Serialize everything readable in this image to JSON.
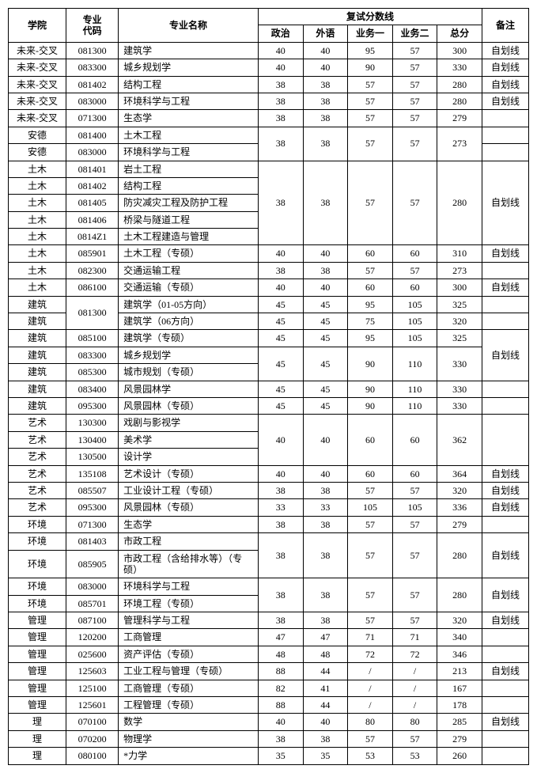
{
  "headers": {
    "college": "学院",
    "code": "专业\n代码",
    "name": "专业名称",
    "scoreGroup": "复试分数线",
    "politics": "政治",
    "foreign": "外语",
    "sub1": "业务一",
    "sub2": "业务二",
    "total": "总分",
    "note": "备注"
  },
  "colors": {
    "border": "#000000",
    "background": "#ffffff",
    "text": "#000000"
  },
  "fontSize": 12,
  "rows": [
    {
      "college": "未来-交叉",
      "code": "081300",
      "name": "建筑学",
      "p": "40",
      "f": "40",
      "s1": "95",
      "s2": "57",
      "t": "300",
      "note": "自划线"
    },
    {
      "college": "未来-交叉",
      "code": "083300",
      "name": "城乡规划学",
      "p": "40",
      "f": "40",
      "s1": "90",
      "s2": "57",
      "t": "330",
      "note": "自划线"
    },
    {
      "college": "未来-交叉",
      "code": "081402",
      "name": "结构工程",
      "p": "38",
      "f": "38",
      "s1": "57",
      "s2": "57",
      "t": "280",
      "note": "自划线"
    },
    {
      "college": "未来-交叉",
      "code": "083000",
      "name": "环境科学与工程",
      "p": "38",
      "f": "38",
      "s1": "57",
      "s2": "57",
      "t": "280",
      "note": "自划线"
    },
    {
      "college": "未来-交叉",
      "code": "071300",
      "name": "生态学",
      "p": "38",
      "f": "38",
      "s1": "57",
      "s2": "57",
      "t": "279",
      "note": ""
    },
    {
      "college": "安德",
      "code": "081400",
      "name": "土木工程",
      "pSpan": 2,
      "p": "38",
      "f": "38",
      "s1": "57",
      "s2": "57",
      "t": "273",
      "note": ""
    },
    {
      "college": "安德",
      "code": "083000",
      "name": "环境科学与工程",
      "skipScores": true,
      "note": ""
    },
    {
      "college": "土木",
      "code": "081401",
      "name": "岩土工程",
      "pSpan": 5,
      "p": "38",
      "f": "38",
      "s1": "57",
      "s2": "57",
      "t": "280",
      "noteSpan": 5,
      "note": "自划线"
    },
    {
      "college": "土木",
      "code": "081402",
      "name": "结构工程",
      "skipScores": true,
      "skipNote": true
    },
    {
      "college": "土木",
      "code": "081405",
      "name": "防灾减灾工程及防护工程",
      "skipScores": true,
      "skipNote": true
    },
    {
      "college": "土木",
      "code": "081406",
      "name": "桥梁与隧道工程",
      "skipScores": true,
      "skipNote": true
    },
    {
      "college": "土木",
      "code": "0814Z1",
      "name": "土木工程建造与管理",
      "skipScores": true,
      "skipNote": true
    },
    {
      "college": "土木",
      "code": "085901",
      "name": "土木工程（专硕）",
      "p": "40",
      "f": "40",
      "s1": "60",
      "s2": "60",
      "t": "310",
      "note": "自划线"
    },
    {
      "college": "土木",
      "code": "082300",
      "name": "交通运输工程",
      "p": "38",
      "f": "38",
      "s1": "57",
      "s2": "57",
      "t": "273",
      "note": ""
    },
    {
      "college": "土木",
      "code": "086100",
      "name": "交通运输（专硕）",
      "p": "40",
      "f": "40",
      "s1": "60",
      "s2": "60",
      "t": "300",
      "note": "自划线"
    },
    {
      "college": "建筑",
      "codeSpan": 2,
      "code": "081300",
      "name": "建筑学（01-05方向）",
      "p": "45",
      "f": "45",
      "s1": "95",
      "s2": "105",
      "t": "325",
      "note": ""
    },
    {
      "college": "建筑",
      "skipCode": true,
      "name": "建筑学（06方向）",
      "p": "45",
      "f": "45",
      "s1": "75",
      "s2": "105",
      "t": "320",
      "note": ""
    },
    {
      "college": "建筑",
      "code": "085100",
      "name": "建筑学（专硕）",
      "p": "45",
      "f": "45",
      "s1": "95",
      "s2": "105",
      "t": "325",
      "noteSpan": 3,
      "note": "自划线"
    },
    {
      "college": "建筑",
      "code": "083300",
      "name": "城乡规划学",
      "pSpan": 2,
      "p": "45",
      "f": "45",
      "s1": "90",
      "s2": "110",
      "t": "330",
      "skipNote": true
    },
    {
      "college": "建筑",
      "code": "085300",
      "name": "城市规划（专硕）",
      "skipScores": true,
      "skipNote": true
    },
    {
      "college": "建筑",
      "code": "083400",
      "name": "风景园林学",
      "p": "45",
      "f": "45",
      "s1": "90",
      "s2": "110",
      "t": "330",
      "note": ""
    },
    {
      "college": "建筑",
      "code": "095300",
      "name": "风景园林（专硕）",
      "p": "45",
      "f": "45",
      "s1": "90",
      "s2": "110",
      "t": "330",
      "note": ""
    },
    {
      "college": "艺术",
      "code": "130300",
      "name": "戏剧与影视学",
      "pSpan": 3,
      "p": "40",
      "f": "40",
      "s1": "60",
      "s2": "60",
      "t": "362",
      "noteSpan": 3,
      "note": ""
    },
    {
      "college": "艺术",
      "code": "130400",
      "name": "美术学",
      "skipScores": true,
      "skipNote": true
    },
    {
      "college": "艺术",
      "code": "130500",
      "name": "设计学",
      "skipScores": true,
      "skipNote": true
    },
    {
      "college": "艺术",
      "code": "135108",
      "name": "艺术设计（专硕）",
      "p": "40",
      "f": "40",
      "s1": "60",
      "s2": "60",
      "t": "364",
      "note": "自划线"
    },
    {
      "college": "艺术",
      "code": "085507",
      "name": "工业设计工程（专硕）",
      "p": "38",
      "f": "38",
      "s1": "57",
      "s2": "57",
      "t": "320",
      "note": "自划线"
    },
    {
      "college": "艺术",
      "code": "095300",
      "name": "风景园林（专硕）",
      "p": "33",
      "f": "33",
      "s1": "105",
      "s2": "105",
      "t": "336",
      "note": "自划线"
    },
    {
      "college": "环境",
      "code": "071300",
      "name": "生态学",
      "p": "38",
      "f": "38",
      "s1": "57",
      "s2": "57",
      "t": "279",
      "note": ""
    },
    {
      "college": "环境",
      "code": "081403",
      "name": "市政工程",
      "pSpan": 2,
      "p": "38",
      "f": "38",
      "s1": "57",
      "s2": "57",
      "t": "280",
      "noteSpan": 2,
      "note": "自划线"
    },
    {
      "college": "环境",
      "code": "085905",
      "name": "市政工程（含给排水等）（专硕）",
      "skipScores": true,
      "skipNote": true
    },
    {
      "college": "环境",
      "code": "083000",
      "name": "环境科学与工程",
      "pSpan": 2,
      "p": "38",
      "f": "38",
      "s1": "57",
      "s2": "57",
      "t": "280",
      "noteSpan": 2,
      "note": "自划线"
    },
    {
      "college": "环境",
      "code": "085701",
      "name": "环境工程（专硕）",
      "skipScores": true,
      "skipNote": true
    },
    {
      "college": "管理",
      "code": "087100",
      "name": "管理科学与工程",
      "p": "38",
      "f": "38",
      "s1": "57",
      "s2": "57",
      "t": "320",
      "note": "自划线"
    },
    {
      "college": "管理",
      "code": "120200",
      "name": "工商管理",
      "p": "47",
      "f": "47",
      "s1": "71",
      "s2": "71",
      "t": "340",
      "note": ""
    },
    {
      "college": "管理",
      "code": "025600",
      "name": "资产评估（专硕）",
      "p": "48",
      "f": "48",
      "s1": "72",
      "s2": "72",
      "t": "346",
      "note": ""
    },
    {
      "college": "管理",
      "code": "125603",
      "name": "工业工程与管理（专硕）",
      "p": "88",
      "f": "44",
      "s1": "/",
      "s2": "/",
      "t": "213",
      "note": "自划线"
    },
    {
      "college": "管理",
      "code": "125100",
      "name": "工商管理（专硕）",
      "p": "82",
      "f": "41",
      "s1": "/",
      "s2": "/",
      "t": "167",
      "note": ""
    },
    {
      "college": "管理",
      "code": "125601",
      "name": "工程管理（专硕）",
      "p": "88",
      "f": "44",
      "s1": "/",
      "s2": "/",
      "t": "178",
      "note": ""
    },
    {
      "college": "理",
      "code": "070100",
      "name": "数学",
      "p": "40",
      "f": "40",
      "s1": "80",
      "s2": "80",
      "t": "285",
      "note": "自划线"
    },
    {
      "college": "理",
      "code": "070200",
      "name": "物理学",
      "p": "38",
      "f": "38",
      "s1": "57",
      "s2": "57",
      "t": "279",
      "note": ""
    },
    {
      "college": "理",
      "code": "080100",
      "name": "*力学",
      "p": "35",
      "f": "35",
      "s1": "53",
      "s2": "53",
      "t": "260",
      "note": ""
    }
  ]
}
